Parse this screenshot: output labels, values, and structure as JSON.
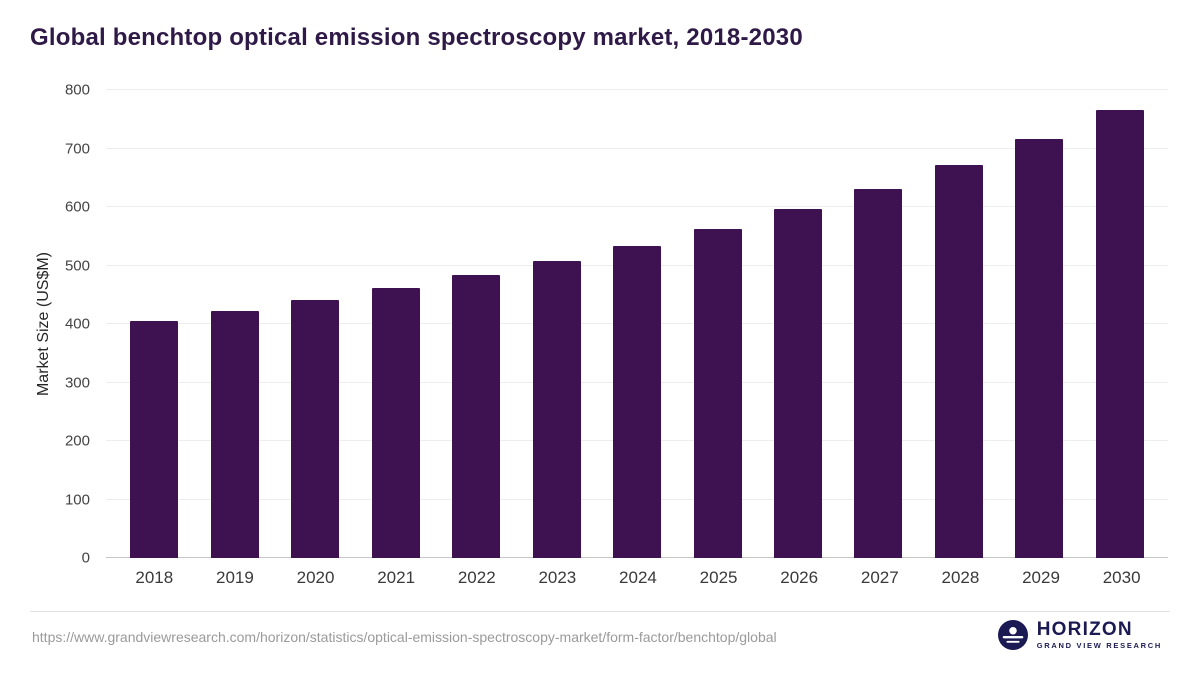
{
  "page": {
    "title": "Global benchtop optical emission spectroscopy market, 2018-2030",
    "source_url": "https://www.grandviewresearch.com/horizon/statistics/optical-emission-spectroscopy-market/form-factor/benchtop/global",
    "logo": {
      "name": "HORIZON",
      "subtitle": "GRAND VIEW RESEARCH"
    }
  },
  "colors": {
    "bar": "#3e1151",
    "title": "#2f1a47",
    "logo": "#1b1a52"
  },
  "chart_data": {
    "type": "bar",
    "title": "Global benchtop optical emission spectroscopy market, 2018-2030",
    "categories": [
      "2018",
      "2019",
      "2020",
      "2021",
      "2022",
      "2023",
      "2024",
      "2025",
      "2026",
      "2027",
      "2028",
      "2029",
      "2030"
    ],
    "values": [
      405,
      422,
      441,
      462,
      484,
      507,
      533,
      562,
      596,
      631,
      671,
      716,
      766
    ],
    "xlabel": "",
    "ylabel": "Market Size (US$M)",
    "ylim": [
      0,
      800
    ],
    "ytick_step": 100,
    "grid": true,
    "legend": "none",
    "bar_color": "#3e1151"
  }
}
